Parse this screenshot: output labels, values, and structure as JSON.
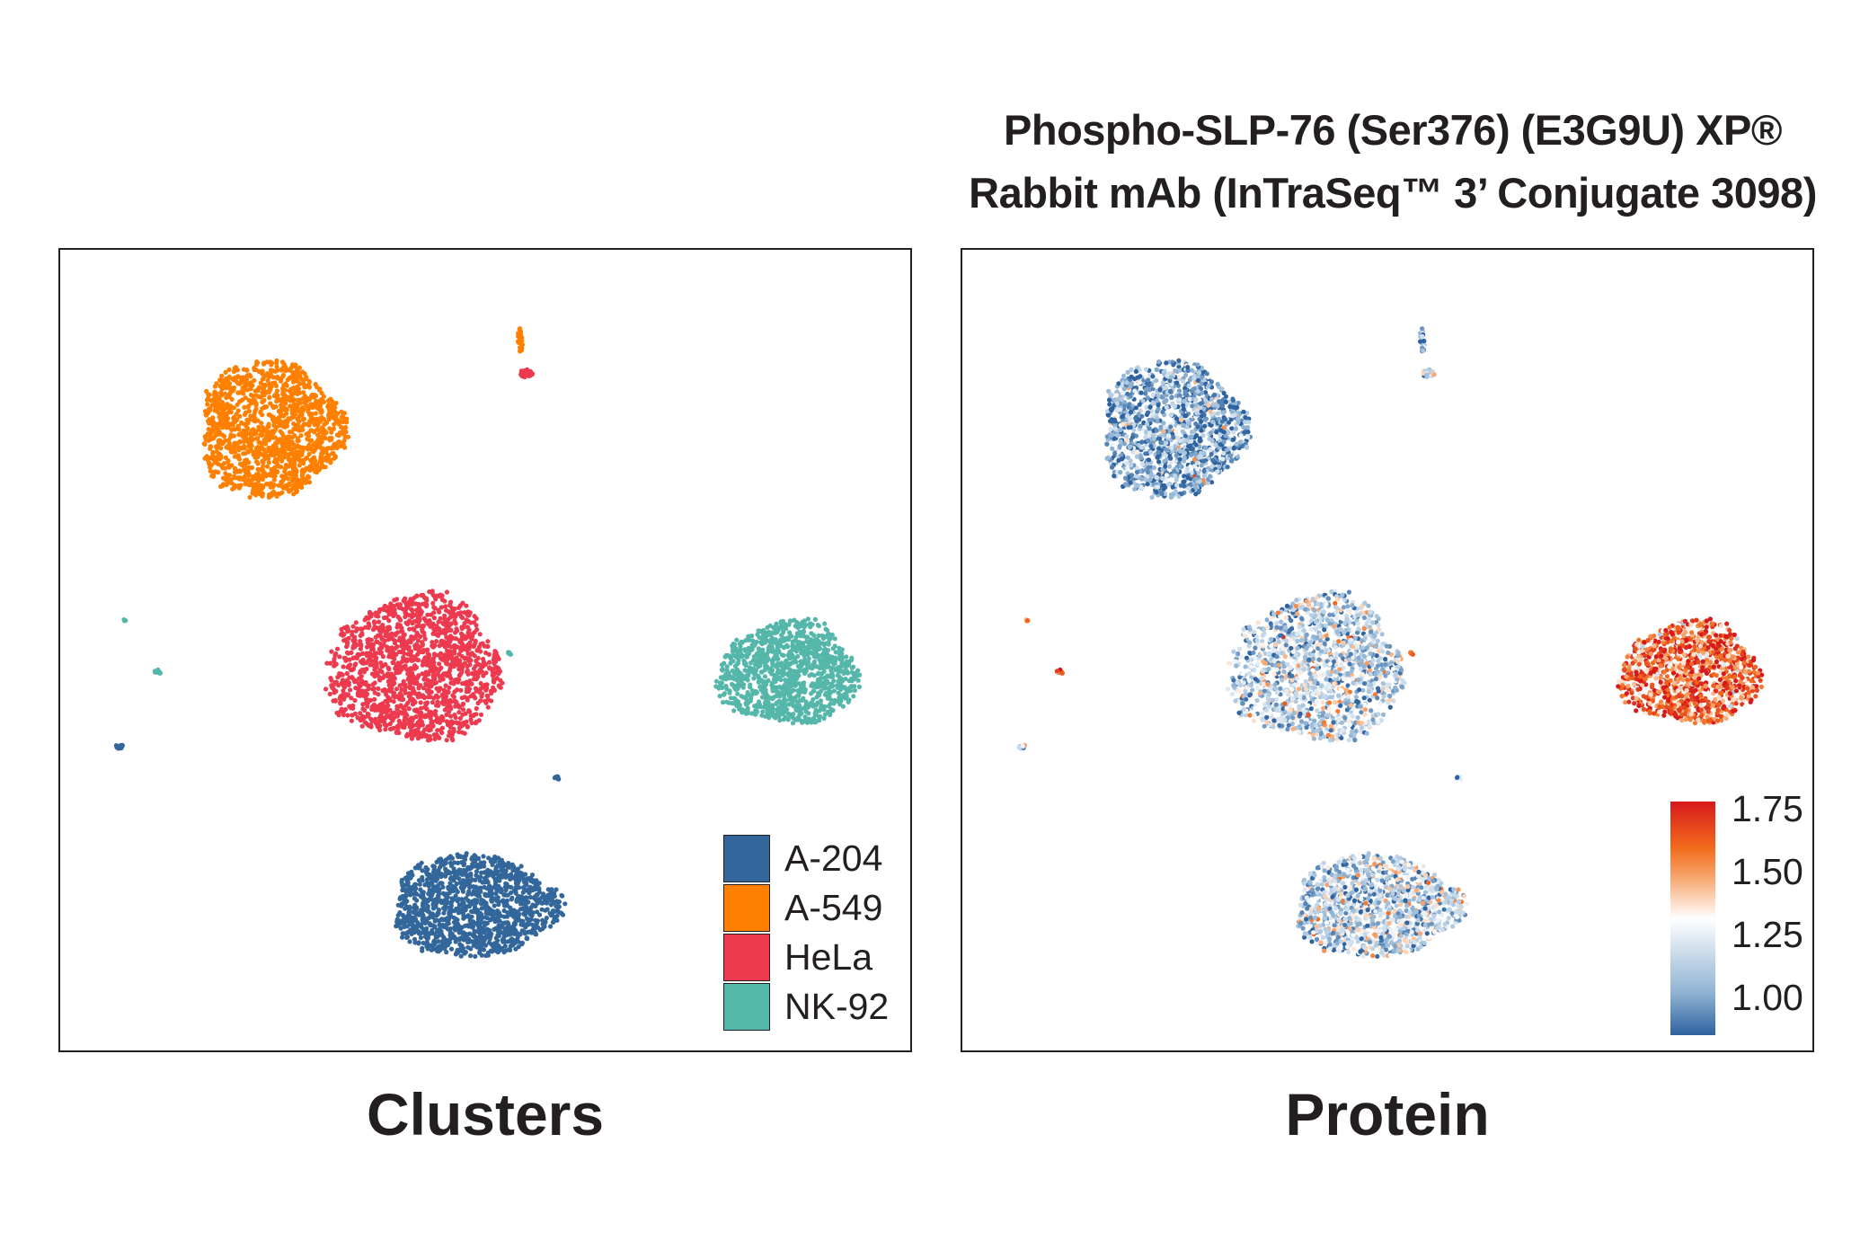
{
  "title_line1": "Phospho-SLP-76 (Ser376) (E3G9U) XP®",
  "title_line2": "Rabbit mAb (InTraSeq™ 3’ Conjugate 3098)",
  "chart_data": [
    {
      "type": "scatter",
      "title": "Clusters",
      "legend_position": "bottom-right",
      "grid": false,
      "series": [
        {
          "name": "A-204",
          "color": "#33679b"
        },
        {
          "name": "A-549",
          "color": "#ff8000"
        },
        {
          "name": "HeLa",
          "color": "#ed3a4f"
        },
        {
          "name": "NK-92",
          "color": "#55b6aa"
        }
      ]
    },
    {
      "type": "scatter",
      "title": "Protein",
      "colorbar_position": "bottom-right",
      "grid": false,
      "colorscale": {
        "min": 0.85,
        "max": 1.78,
        "ticks": [
          1.75,
          1.5,
          1.25,
          1.0
        ],
        "tick_labels": [
          "1.75",
          "1.50",
          "1.25",
          "1.00"
        ]
      },
      "cluster_mean_expression": {
        "A-204": 1.15,
        "A-549": 1.0,
        "HeLa": 1.15,
        "NK-92": 1.6
      }
    }
  ]
}
